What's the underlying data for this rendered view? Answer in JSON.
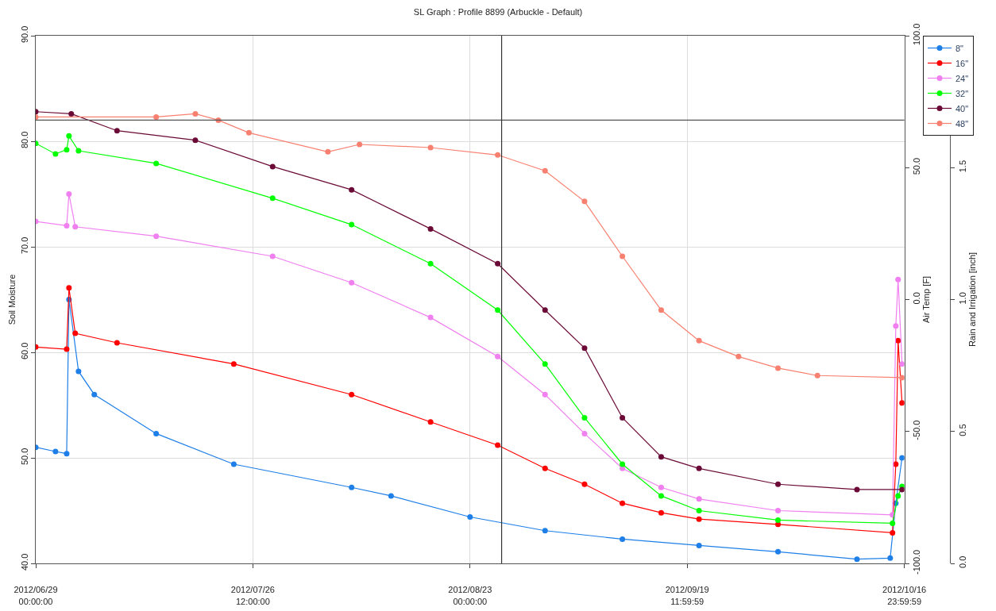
{
  "chart_data": {
    "type": "line",
    "title": "SL Graph : Profile 8899 (Arbuckle - Default)",
    "ylabel": "Soil Moisture",
    "y2label": "Air Temp [F]",
    "y3label": "Rain and Irrigation [inch]",
    "xlim": [
      "2012-06-29T00:00",
      "2012-10-17T00:00"
    ],
    "xticks": [
      {
        "value": "2012-06-29T00:00",
        "label": "2012/06/29\n00:00:00"
      },
      {
        "value": "2012-07-26T12:00",
        "label": "2012/07/26\n12:00:00"
      },
      {
        "value": "2012-08-23T00:00",
        "label": "2012/08/23\n00:00:00"
      },
      {
        "value": "2012-09-19T12:00",
        "label": "2012/09/19\n11:59:59"
      },
      {
        "value": "2012-10-16T23:59",
        "label": "2012/10/16\n23:59:59"
      }
    ],
    "ylim": [
      40,
      90
    ],
    "yticks": [
      {
        "value": 40,
        "label": "40.0"
      },
      {
        "value": 50,
        "label": "50.0"
      },
      {
        "value": 60,
        "label": "60.0"
      },
      {
        "value": 70,
        "label": "70.0"
      },
      {
        "value": 80,
        "label": "80.0"
      },
      {
        "value": 90,
        "label": "90.0"
      }
    ],
    "y2lim": [
      -100,
      100
    ],
    "y2ticks": [
      {
        "value": -100,
        "label": "-100.0"
      },
      {
        "value": -50,
        "label": "-50.0"
      },
      {
        "value": 0,
        "label": "0.0"
      },
      {
        "value": 50,
        "label": "50.0"
      },
      {
        "value": 100,
        "label": "100.0"
      }
    ],
    "y3lim": [
      0,
      2
    ],
    "y3ticks": [
      {
        "value": 0,
        "label": "0.0"
      },
      {
        "value": 0.5,
        "label": "0.5"
      },
      {
        "value": 1,
        "label": "1.0"
      },
      {
        "value": 1.5,
        "label": "1.5"
      }
    ],
    "grid": true,
    "legend": "top right",
    "marker": "circle",
    "line_style": "solid",
    "ref_lines": [
      {
        "axis": "y",
        "value": 82,
        "color": "#555555"
      },
      {
        "axis": "x",
        "value": "2012-08-27T00:00",
        "color": "#333333"
      }
    ],
    "series": [
      {
        "name": "8\"",
        "color": "#1e7fe8",
        "x": [
          "2012-06-29T00:00",
          "2012-07-01T12:00",
          "2012-07-02T22:00",
          "2012-07-03T05:00",
          "2012-07-04T10:00",
          "2012-07-06T10:00",
          "2012-07-14T06:00",
          "2012-07-24T02:00",
          "2012-08-08T00:00",
          "2012-08-13T00:00",
          "2012-08-23T00:00",
          "2012-09-01T12:00",
          "2012-09-11T07:00",
          "2012-09-21T00:00",
          "2012-10-01T00:00",
          "2012-10-11T00:00",
          "2012-10-15T05:00",
          "2012-10-15T22:00",
          "2012-10-16T17:00"
        ],
        "values": [
          51.0,
          50.6,
          50.4,
          65.0,
          58.2,
          56.0,
          52.3,
          49.4,
          47.2,
          46.4,
          44.4,
          43.1,
          42.3,
          41.7,
          41.1,
          40.4,
          40.5,
          45.7,
          50.0
        ]
      },
      {
        "name": "16\"",
        "color": "#ff0000",
        "x": [
          "2012-06-29T00:00",
          "2012-07-02T22:00",
          "2012-07-03T05:00",
          "2012-07-04T00:00",
          "2012-07-09T07:00",
          "2012-07-24T02:00",
          "2012-08-08T00:00",
          "2012-08-18T00:00",
          "2012-08-26T12:00",
          "2012-09-01T12:00",
          "2012-09-06T12:00",
          "2012-09-11T07:00",
          "2012-09-16T05:00",
          "2012-09-21T00:00",
          "2012-10-01T00:00",
          "2012-10-15T12:00",
          "2012-10-15T22:00",
          "2012-10-16T05:00",
          "2012-10-16T17:00"
        ],
        "values": [
          60.5,
          60.3,
          66.1,
          61.8,
          60.9,
          58.9,
          56.0,
          53.4,
          51.2,
          49.0,
          47.5,
          45.7,
          44.8,
          44.2,
          43.7,
          42.9,
          49.4,
          61.1,
          55.2
        ]
      },
      {
        "name": "24\"",
        "color": "#f07ff0",
        "x": [
          "2012-06-29T00:00",
          "2012-07-02T22:00",
          "2012-07-03T05:00",
          "2012-07-04T00:00",
          "2012-07-14T06:00",
          "2012-07-29T00:00",
          "2012-08-08T00:00",
          "2012-08-18T00:00",
          "2012-08-26T12:00",
          "2012-09-01T12:00",
          "2012-09-06T12:00",
          "2012-09-11T07:00",
          "2012-09-16T05:00",
          "2012-09-21T00:00",
          "2012-10-01T00:00",
          "2012-10-15T12:00",
          "2012-10-15T22:00",
          "2012-10-16T05:00",
          "2012-10-16T17:00"
        ],
        "values": [
          72.4,
          72.0,
          75.0,
          71.9,
          71.0,
          69.1,
          66.6,
          63.3,
          59.6,
          56.0,
          52.3,
          49.0,
          47.2,
          46.1,
          45.0,
          44.6,
          62.5,
          66.9,
          58.9
        ]
      },
      {
        "name": "32\"",
        "color": "#00ff00",
        "x": [
          "2012-06-29T00:00",
          "2012-07-01T12:00",
          "2012-07-02T22:00",
          "2012-07-03T05:00",
          "2012-07-04T10:00",
          "2012-07-14T06:00",
          "2012-07-29T00:00",
          "2012-08-08T00:00",
          "2012-08-18T00:00",
          "2012-08-26T12:00",
          "2012-09-01T12:00",
          "2012-09-06T12:00",
          "2012-09-11T07:00",
          "2012-09-16T05:00",
          "2012-09-21T00:00",
          "2012-10-01T00:00",
          "2012-10-15T12:00",
          "2012-10-16T05:00",
          "2012-10-16T17:00"
        ],
        "values": [
          79.8,
          78.8,
          79.2,
          80.5,
          79.1,
          77.9,
          74.6,
          72.1,
          68.4,
          64.0,
          58.9,
          53.8,
          49.4,
          46.4,
          45.0,
          44.1,
          43.8,
          46.4,
          47.3
        ]
      },
      {
        "name": "40\"",
        "color": "#6b0a36",
        "x": [
          "2012-06-29T00:00",
          "2012-07-03T12:00",
          "2012-07-09T07:00",
          "2012-07-19T05:00",
          "2012-07-29T00:00",
          "2012-08-08T00:00",
          "2012-08-18T00:00",
          "2012-08-26T12:00",
          "2012-09-01T12:00",
          "2012-09-06T12:00",
          "2012-09-11T07:00",
          "2012-09-16T05:00",
          "2012-09-21T00:00",
          "2012-10-01T00:00",
          "2012-10-11T00:00",
          "2012-10-16T17:00"
        ],
        "values": [
          82.8,
          82.6,
          81.0,
          80.1,
          77.6,
          75.4,
          71.7,
          68.4,
          64.0,
          60.4,
          53.8,
          50.1,
          49.0,
          47.5,
          47.0,
          47.0
        ]
      },
      {
        "name": "48\"",
        "color": "#f88070",
        "x": [
          "2012-06-29T00:00",
          "2012-07-14T06:00",
          "2012-07-19T05:00",
          "2012-07-22T03:00",
          "2012-07-26T00:00",
          "2012-08-05T00:00",
          "2012-08-09T00:00",
          "2012-08-18T00:00",
          "2012-08-26T12:00",
          "2012-09-01T12:00",
          "2012-09-06T12:00",
          "2012-09-11T07:00",
          "2012-09-16T05:00",
          "2012-09-21T00:00",
          "2012-09-26T00:00",
          "2012-10-01T00:00",
          "2012-10-06T00:00",
          "2012-10-16T17:00"
        ],
        "values": [
          82.3,
          82.3,
          82.6,
          82.0,
          80.8,
          79.0,
          79.7,
          79.4,
          78.7,
          77.2,
          74.3,
          69.1,
          64.0,
          61.1,
          59.6,
          58.5,
          57.8,
          57.6
        ]
      }
    ]
  }
}
